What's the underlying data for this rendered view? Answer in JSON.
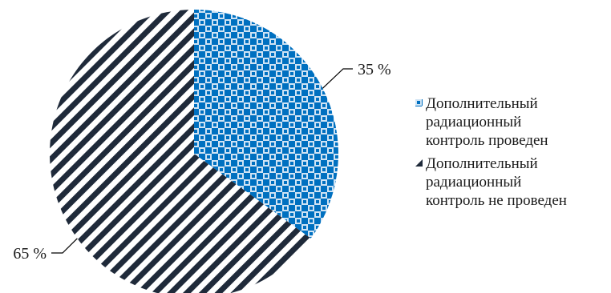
{
  "chart_data": {
    "type": "pie",
    "slices": [
      {
        "label": "Дополнительный\nрадиационный\nконтроль проведен",
        "value": 35,
        "data_label": "35 %",
        "color": "#0070c0",
        "pattern": "checker"
      },
      {
        "label": "Дополнительный\nрадиационный\nконтроль не проведен",
        "value": 65,
        "data_label": "65 %",
        "color": "#1f2a3a",
        "pattern": "diagonal-stripes"
      }
    ],
    "legend_position": "right"
  }
}
